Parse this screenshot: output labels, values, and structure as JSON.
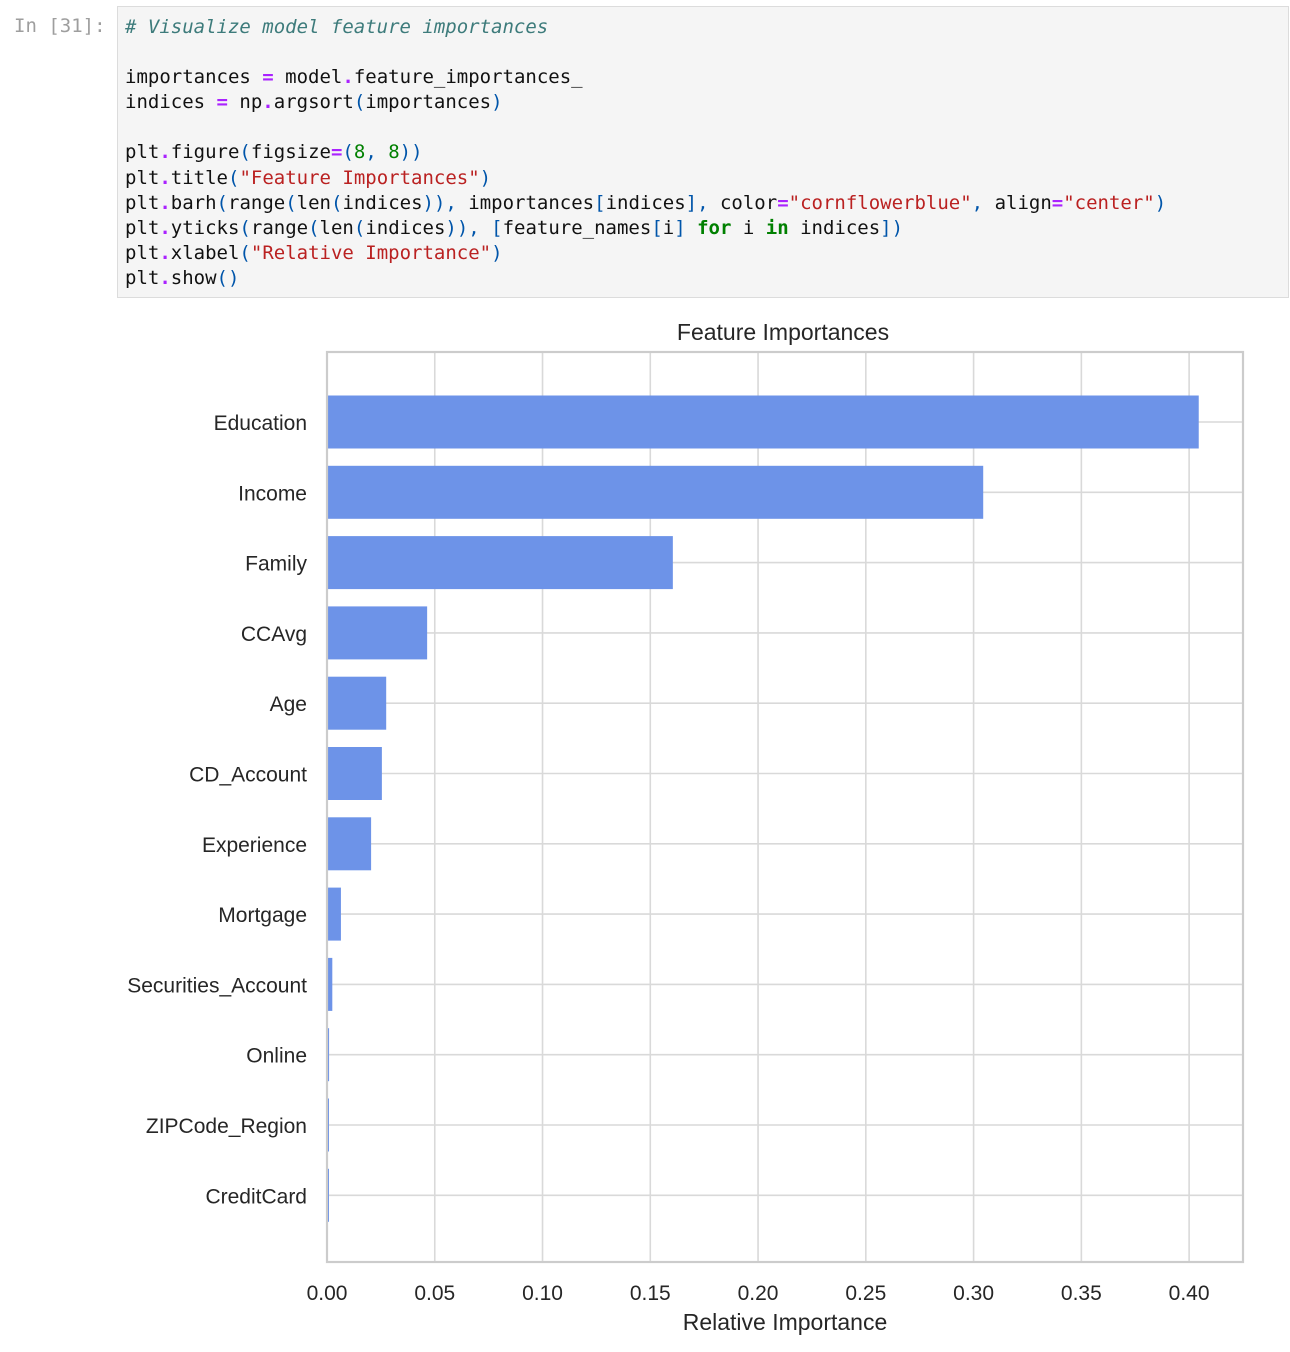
{
  "cell": {
    "prompt": "In [31]:",
    "code_lines": [
      [
        {
          "t": "c",
          "v": "# Visualize model feature importances"
        }
      ],
      [],
      [
        {
          "t": "",
          "v": "importances "
        },
        {
          "t": "o",
          "v": "="
        },
        {
          "t": "",
          "v": " model"
        },
        {
          "t": "o",
          "v": "."
        },
        {
          "t": "",
          "v": "feature_importances_"
        }
      ],
      [
        {
          "t": "",
          "v": "indices "
        },
        {
          "t": "o",
          "v": "="
        },
        {
          "t": "",
          "v": " np"
        },
        {
          "t": "o",
          "v": "."
        },
        {
          "t": "",
          "v": "argsort"
        },
        {
          "t": "p",
          "v": "("
        },
        {
          "t": "",
          "v": "importances"
        },
        {
          "t": "p",
          "v": ")"
        }
      ],
      [],
      [
        {
          "t": "",
          "v": "plt"
        },
        {
          "t": "o",
          "v": "."
        },
        {
          "t": "",
          "v": "figure"
        },
        {
          "t": "p",
          "v": "("
        },
        {
          "t": "",
          "v": "figsize"
        },
        {
          "t": "o",
          "v": "="
        },
        {
          "t": "p",
          "v": "("
        },
        {
          "t": "n",
          "v": "8"
        },
        {
          "t": "p",
          "v": ", "
        },
        {
          "t": "n",
          "v": "8"
        },
        {
          "t": "p",
          "v": "))"
        }
      ],
      [
        {
          "t": "",
          "v": "plt"
        },
        {
          "t": "o",
          "v": "."
        },
        {
          "t": "",
          "v": "title"
        },
        {
          "t": "p",
          "v": "("
        },
        {
          "t": "s",
          "v": "\"Feature Importances\""
        },
        {
          "t": "p",
          "v": ")"
        }
      ],
      [
        {
          "t": "",
          "v": "plt"
        },
        {
          "t": "o",
          "v": "."
        },
        {
          "t": "",
          "v": "barh"
        },
        {
          "t": "p",
          "v": "("
        },
        {
          "t": "",
          "v": "range"
        },
        {
          "t": "p",
          "v": "("
        },
        {
          "t": "",
          "v": "len"
        },
        {
          "t": "p",
          "v": "("
        },
        {
          "t": "",
          "v": "indices"
        },
        {
          "t": "p",
          "v": ")), "
        },
        {
          "t": "",
          "v": "importances"
        },
        {
          "t": "p",
          "v": "["
        },
        {
          "t": "",
          "v": "indices"
        },
        {
          "t": "p",
          "v": "], "
        },
        {
          "t": "",
          "v": "color"
        },
        {
          "t": "o",
          "v": "="
        },
        {
          "t": "s",
          "v": "\"cornflowerblue\""
        },
        {
          "t": "p",
          "v": ", "
        },
        {
          "t": "",
          "v": "align"
        },
        {
          "t": "o",
          "v": "="
        },
        {
          "t": "s",
          "v": "\"center\""
        },
        {
          "t": "p",
          "v": ")"
        }
      ],
      [
        {
          "t": "",
          "v": "plt"
        },
        {
          "t": "o",
          "v": "."
        },
        {
          "t": "",
          "v": "yticks"
        },
        {
          "t": "p",
          "v": "("
        },
        {
          "t": "",
          "v": "range"
        },
        {
          "t": "p",
          "v": "("
        },
        {
          "t": "",
          "v": "len"
        },
        {
          "t": "p",
          "v": "("
        },
        {
          "t": "",
          "v": "indices"
        },
        {
          "t": "p",
          "v": ")), ["
        },
        {
          "t": "",
          "v": "feature_names"
        },
        {
          "t": "p",
          "v": "["
        },
        {
          "t": "",
          "v": "i"
        },
        {
          "t": "p",
          "v": "] "
        },
        {
          "t": "k",
          "v": "for"
        },
        {
          "t": "",
          "v": " i "
        },
        {
          "t": "k",
          "v": "in"
        },
        {
          "t": "",
          "v": " indices"
        },
        {
          "t": "p",
          "v": "])"
        }
      ],
      [
        {
          "t": "",
          "v": "plt"
        },
        {
          "t": "o",
          "v": "."
        },
        {
          "t": "",
          "v": "xlabel"
        },
        {
          "t": "p",
          "v": "("
        },
        {
          "t": "s",
          "v": "\"Relative Importance\""
        },
        {
          "t": "p",
          "v": ")"
        }
      ],
      [
        {
          "t": "",
          "v": "plt"
        },
        {
          "t": "o",
          "v": "."
        },
        {
          "t": "",
          "v": "show"
        },
        {
          "t": "p",
          "v": "()"
        }
      ]
    ]
  },
  "colors": {
    "bar": "#6d93e8",
    "grid": "#d9d9d9",
    "frame": "#cccccc",
    "text": "#262626"
  },
  "chart_data": {
    "type": "bar",
    "orientation": "horizontal",
    "title": "Feature Importances",
    "xlabel": "Relative Importance",
    "ylabel": "",
    "categories": [
      "Education",
      "Income",
      "Family",
      "CCAvg",
      "Age",
      "CD_Account",
      "Experience",
      "Mortgage",
      "Securities_Account",
      "Online",
      "ZIPCode_Region",
      "CreditCard"
    ],
    "values": [
      0.404,
      0.304,
      0.16,
      0.046,
      0.027,
      0.025,
      0.02,
      0.006,
      0.002,
      0.0005,
      0.0004,
      0.0003
    ],
    "xticks": [
      "0.00",
      "0.05",
      "0.10",
      "0.15",
      "0.20",
      "0.25",
      "0.30",
      "0.35",
      "0.40"
    ],
    "xlim": [
      0,
      0.425
    ],
    "grid": true,
    "bar_color": "cornflowerblue"
  }
}
